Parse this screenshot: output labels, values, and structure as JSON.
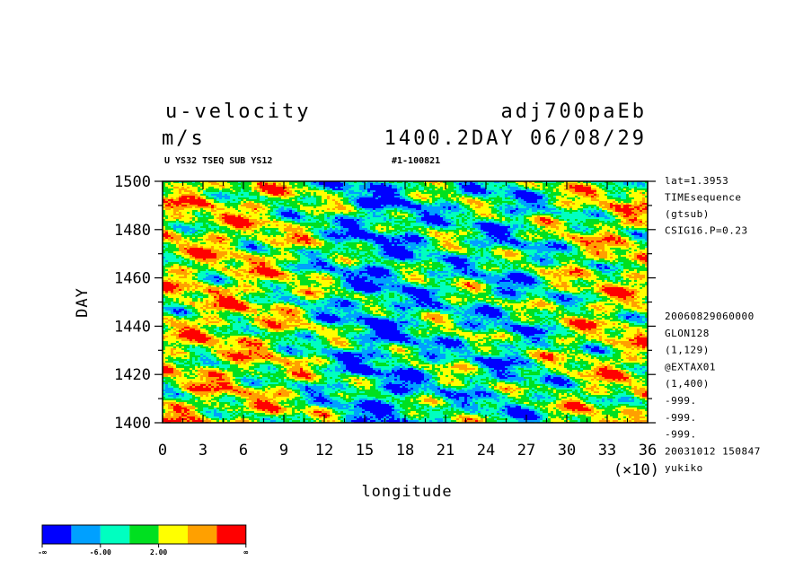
{
  "header": {
    "variable": "u-velocity",
    "run": "adj700paEb",
    "units": "m/s",
    "time": "1400.2DAY 06/08/29",
    "subtitle_left": "U YS32 TSEQ SUB YS12",
    "subtitle_right": "#1-100821"
  },
  "side_info": {
    "top": [
      "lat=1.3953",
      "TIMEsequence",
      "(gtsub)",
      "CSIG16.P=0.23"
    ],
    "bottom": [
      "20060829060000",
      "GLON128",
      "(1,129)",
      "@EXTAX01",
      "(1,400)",
      "-999.",
      "-999.",
      "-999.",
      "20031012 150847",
      "yukiko"
    ]
  },
  "chart_data": {
    "type": "heatmap",
    "title": "u-velocity",
    "xlabel": "longitude",
    "ylabel": "DAY",
    "x_multiplier_label": "(×10)",
    "xlim": [
      0,
      36
    ],
    "ylim": [
      1400,
      1500
    ],
    "x_ticks": [
      "0",
      "3",
      "6",
      "9",
      "12",
      "15",
      "18",
      "21",
      "24",
      "27",
      "30",
      "33",
      "36"
    ],
    "y_ticks": [
      "1400",
      "1420",
      "1440",
      "1460",
      "1480",
      "1500"
    ],
    "colorbar": {
      "colors": [
        "#0000ff",
        "#00a0ff",
        "#00ffc0",
        "#00e020",
        "#ffff00",
        "#ffa000",
        "#ff0000"
      ],
      "labels": [
        "-∞",
        "-6.00",
        "2.00",
        "∞"
      ]
    }
  }
}
